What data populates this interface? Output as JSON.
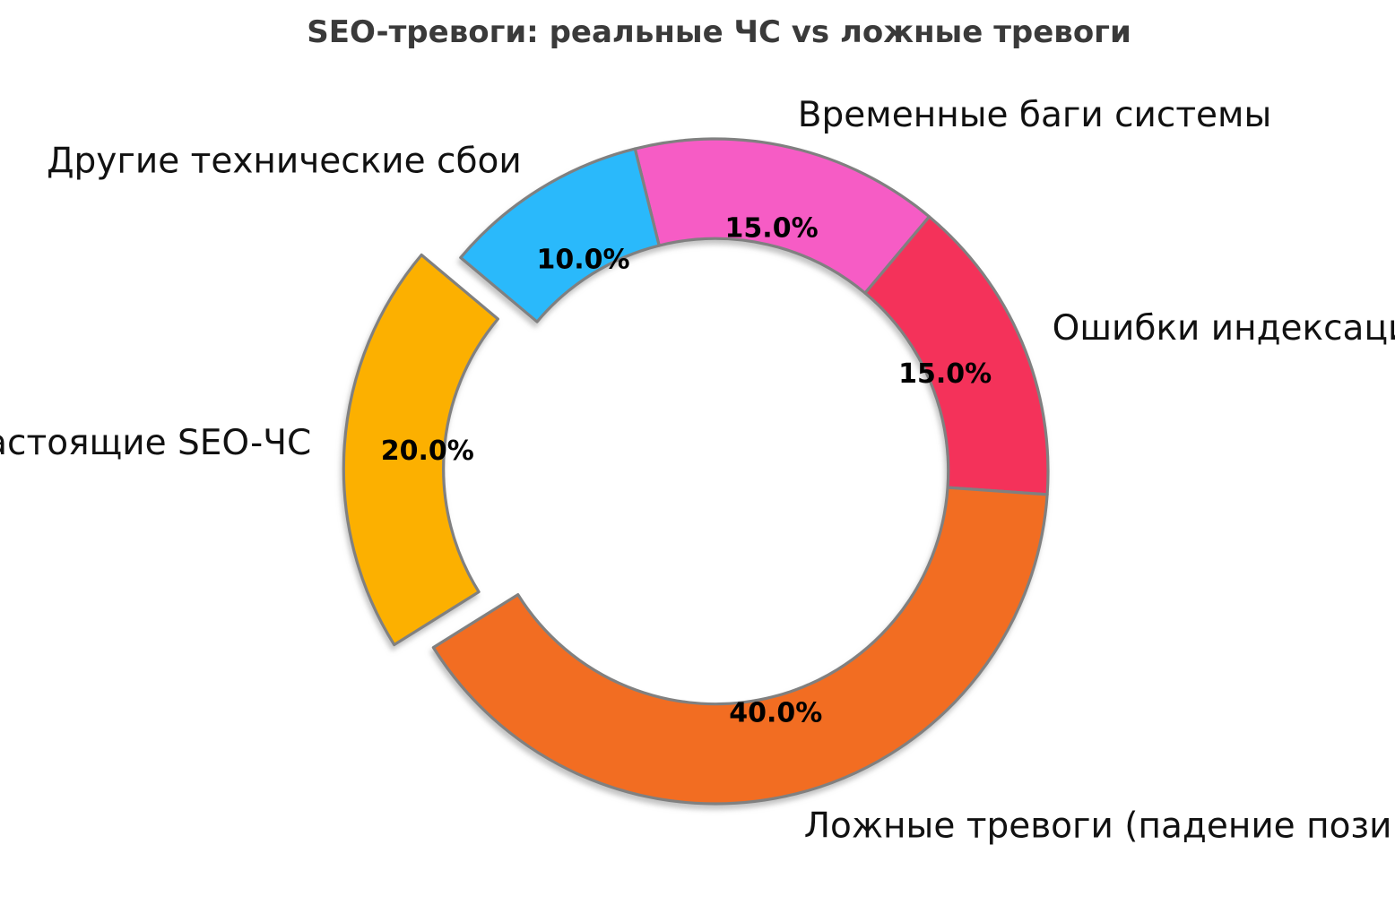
{
  "title": "SEO-тревоги: реальные ЧС vs ложные тревоги",
  "chart_data": {
    "type": "pie",
    "variant": "donut",
    "title": "SEO-тревоги: реальные ЧС vs ложные тревоги",
    "units": "%",
    "total": 100,
    "slices": [
      {
        "label": "Временные баги системы",
        "value": 15.0,
        "pct_label": "15.0%",
        "color": "#F65CC5",
        "explode": 0
      },
      {
        "label": "Ошибки индексации",
        "value": 15.0,
        "pct_label": "15.0%",
        "color": "#F4315A",
        "explode": 0
      },
      {
        "label": "Ложные тревоги (падение позиций)",
        "value": 40.0,
        "pct_label": "40.0%",
        "color": "#F26D24",
        "explode": 0
      },
      {
        "label": "Настоящие SEO-ЧС",
        "value": 20.0,
        "pct_label": "20.0%",
        "color": "#FCB002",
        "explode": 0.118
      },
      {
        "label": "Другие технические сбои",
        "value": 10.0,
        "pct_label": "10.0%",
        "color": "#2BB9FB",
        "explode": 0
      }
    ],
    "start_angle_deg": 104,
    "direction": "clockwise",
    "donut_width_fraction": 0.3,
    "pct_distance": 0.75,
    "label_distance": 1.1,
    "edge_color": "#808080",
    "edge_width": 3.2,
    "legend": "none",
    "grid": "off",
    "background_color": "#FFFFFF",
    "title_color": "#3A3A3A",
    "label_color": "#111111",
    "pct_color": "#000000"
  }
}
